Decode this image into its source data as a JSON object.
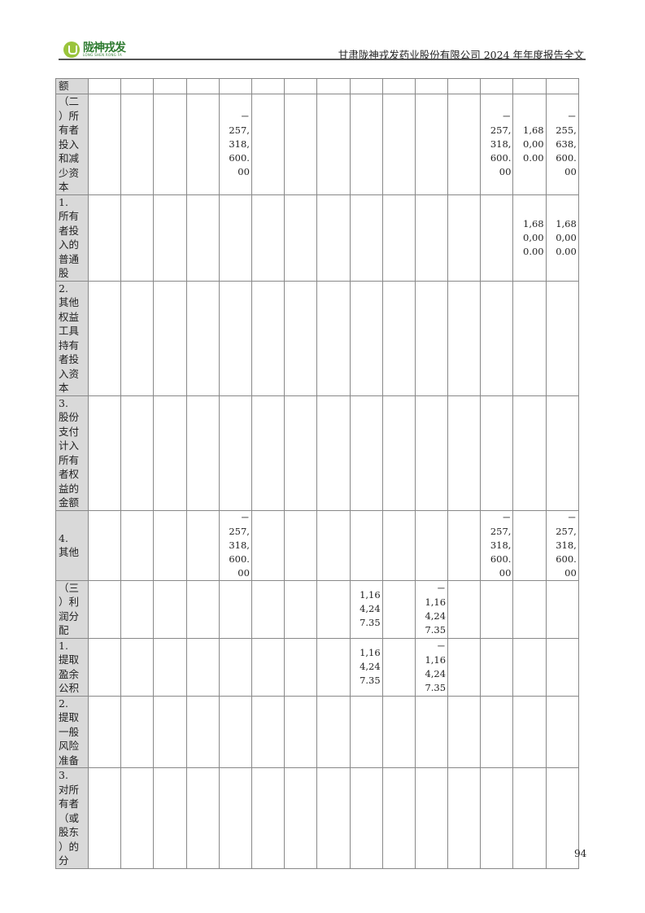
{
  "header": {
    "logo_cn": "陇神戎发",
    "logo_en": "LONG SHEN RONG FA",
    "title": "甘肃陇神戎发药业股份有限公司 2024 年年度报告全文"
  },
  "table": {
    "rows": [
      {
        "label": "额",
        "cells": [
          "",
          "",
          "",
          "",
          "",
          "",
          "",
          "",
          "",
          "",
          "",
          "",
          "",
          "",
          ""
        ]
      },
      {
        "label": "（二）所有者投入和减少资本",
        "cells": [
          "",
          "",
          "",
          "",
          "-257,318,600.00",
          "",
          "",
          "",
          "",
          "",
          "",
          "",
          "-257,318,600.00",
          "1,680,000.00",
          "-255,638,600.00"
        ]
      },
      {
        "label": "1.所有者投入的普通股",
        "cells": [
          "",
          "",
          "",
          "",
          "",
          "",
          "",
          "",
          "",
          "",
          "",
          "",
          "",
          "1,680,000.00",
          "1,680,000.00"
        ]
      },
      {
        "label": "2.其他权益工具持有者投入资本",
        "cells": [
          "",
          "",
          "",
          "",
          "",
          "",
          "",
          "",
          "",
          "",
          "",
          "",
          "",
          "",
          ""
        ]
      },
      {
        "label": "3.股份支付计入所有者权益的金额",
        "cells": [
          "",
          "",
          "",
          "",
          "",
          "",
          "",
          "",
          "",
          "",
          "",
          "",
          "",
          "",
          ""
        ]
      },
      {
        "label": "4.其他",
        "cells": [
          "",
          "",
          "",
          "",
          "-257,318,600.00",
          "",
          "",
          "",
          "",
          "",
          "",
          "",
          "-257,318,600.00",
          "",
          "-257,318,600.00"
        ]
      },
      {
        "label": "（三）利润分配",
        "cells": [
          "",
          "",
          "",
          "",
          "",
          "",
          "",
          "",
          "1,164,247.35",
          "",
          "-1,164,247.35",
          "",
          "",
          "",
          ""
        ]
      },
      {
        "label": "1.提取盈余公积",
        "cells": [
          "",
          "",
          "",
          "",
          "",
          "",
          "",
          "",
          "1,164,247.35",
          "",
          "-1,164,247.35",
          "",
          "",
          "",
          ""
        ]
      },
      {
        "label": "2.提取一般风险准备",
        "cells": [
          "",
          "",
          "",
          "",
          "",
          "",
          "",
          "",
          "",
          "",
          "",
          "",
          "",
          "",
          ""
        ]
      },
      {
        "label": "3.对所有者（或股东）的分",
        "cells": [
          "",
          "",
          "",
          "",
          "",
          "",
          "",
          "",
          "",
          "",
          "",
          "",
          "",
          "",
          ""
        ]
      }
    ]
  },
  "page_number": "94"
}
